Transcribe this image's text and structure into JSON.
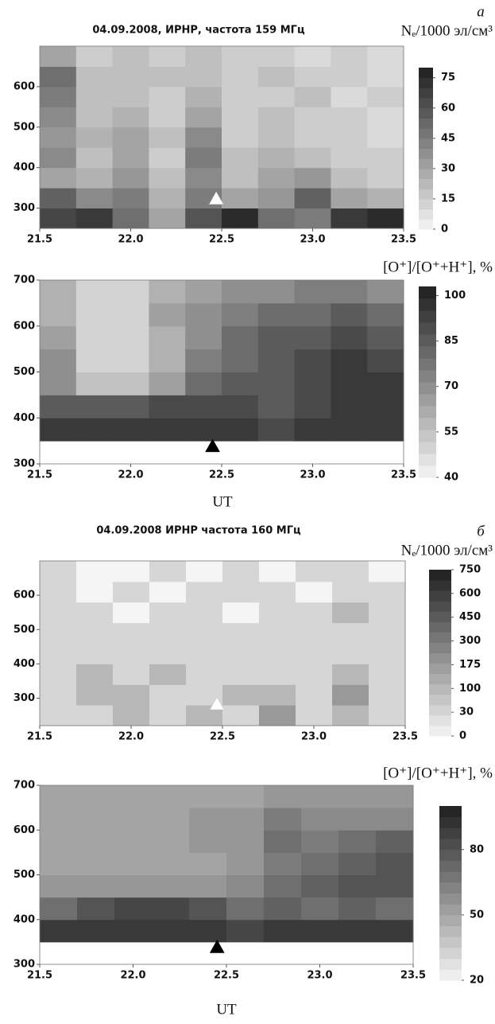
{
  "chart_data": [
    {
      "type": "heatmap",
      "title": "04.09.2008, ИРНР, частота 159 МГц",
      "panel_label": "а",
      "colorbar_label": "Nₑ/1000 эл/см³",
      "xbins": [
        21.5,
        21.7,
        21.9,
        22.1,
        22.3,
        22.5,
        22.7,
        22.9,
        23.1,
        23.3,
        23.5
      ],
      "ybins": [
        250,
        300,
        350,
        400,
        450,
        500,
        550,
        600,
        650,
        700
      ],
      "z": [
        [
          65,
          70,
          50,
          30,
          60,
          75,
          50,
          45,
          70,
          75
        ],
        [
          55,
          40,
          45,
          25,
          45,
          30,
          35,
          55,
          30,
          25
        ],
        [
          30,
          25,
          35,
          20,
          40,
          20,
          30,
          35,
          20,
          15
        ],
        [
          40,
          20,
          30,
          15,
          45,
          20,
          25,
          20,
          15,
          15
        ],
        [
          35,
          25,
          30,
          20,
          40,
          15,
          20,
          15,
          15,
          10
        ],
        [
          40,
          20,
          25,
          15,
          30,
          15,
          20,
          15,
          15,
          10
        ],
        [
          45,
          20,
          20,
          15,
          25,
          15,
          15,
          20,
          10,
          15
        ],
        [
          50,
          20,
          20,
          20,
          20,
          15,
          20,
          15,
          15,
          10
        ],
        [
          30,
          15,
          20,
          15,
          20,
          15,
          15,
          10,
          15,
          10
        ]
      ],
      "xlim": [
        21.5,
        23.5
      ],
      "ylim": [
        250,
        700
      ],
      "xticks": [
        21.5,
        {
          "value": 22,
          "label": "22.0"
        },
        22.5,
        {
          "value": 23,
          "label": "23.0"
        },
        23.5
      ],
      "yticks": [
        300,
        400,
        500,
        600
      ],
      "zlim": [
        0,
        80
      ],
      "zticks": [
        0,
        15,
        30,
        45,
        60,
        75
      ],
      "marker": {
        "x": 22.47,
        "y": 325,
        "color": "#ffffff"
      }
    },
    {
      "type": "heatmap",
      "colorbar_label": "[O⁺]/[O⁺+H⁺], %",
      "xlabel": "UT",
      "xbins": [
        21.5,
        21.7,
        21.9,
        22.1,
        22.3,
        22.5,
        22.7,
        22.9,
        23.1,
        23.3,
        23.5
      ],
      "ybins": [
        300,
        350,
        400,
        450,
        500,
        550,
        600,
        650,
        700
      ],
      "z": [
        [
          null,
          null,
          null,
          null,
          null,
          null,
          null,
          null,
          null,
          null
        ],
        [
          95,
          95,
          95,
          95,
          95,
          95,
          90,
          95,
          95,
          95
        ],
        [
          85,
          85,
          85,
          90,
          90,
          90,
          85,
          90,
          95,
          95
        ],
        [
          70,
          55,
          55,
          65,
          80,
          85,
          85,
          90,
          95,
          95
        ],
        [
          70,
          50,
          50,
          60,
          75,
          80,
          85,
          90,
          95,
          90
        ],
        [
          65,
          50,
          50,
          60,
          70,
          80,
          85,
          85,
          90,
          85
        ],
        [
          60,
          50,
          50,
          65,
          70,
          75,
          80,
          80,
          85,
          80
        ],
        [
          60,
          50,
          50,
          60,
          65,
          70,
          70,
          75,
          75,
          70
        ]
      ],
      "xlim": [
        21.5,
        23.5
      ],
      "ylim": [
        300,
        700
      ],
      "xticks": [
        21.5,
        {
          "value": 22,
          "label": "22.0"
        },
        22.5,
        {
          "value": 23,
          "label": "23.0"
        },
        23.5
      ],
      "yticks": [
        300,
        400,
        500,
        600,
        700
      ],
      "zlim": [
        40,
        103
      ],
      "zticks": [
        40,
        55,
        70,
        85,
        100
      ],
      "marker": {
        "x": 22.45,
        "y": 340,
        "color": "#000000"
      }
    },
    {
      "type": "heatmap",
      "title": "04.09.2008 ИРНР частота 160 МГц",
      "panel_label": "б",
      "colorbar_label": "Nₑ/1000 эл/см³",
      "xbins": [
        21.5,
        21.7,
        21.9,
        22.1,
        22.3,
        22.5,
        22.7,
        22.9,
        23.1,
        23.3,
        23.5
      ],
      "ybins": [
        220,
        280,
        340,
        400,
        460,
        520,
        580,
        640,
        700
      ],
      "z": [
        [
          30,
          30,
          100,
          30,
          100,
          30,
          175,
          30,
          100,
          30
        ],
        [
          30,
          100,
          100,
          30,
          30,
          100,
          100,
          30,
          175,
          30
        ],
        [
          30,
          100,
          30,
          100,
          30,
          30,
          30,
          30,
          100,
          30
        ],
        [
          30,
          30,
          30,
          30,
          30,
          30,
          30,
          30,
          30,
          30
        ],
        [
          30,
          30,
          30,
          30,
          30,
          30,
          30,
          30,
          30,
          30
        ],
        [
          30,
          30,
          0,
          30,
          30,
          0,
          30,
          30,
          100,
          30
        ],
        [
          30,
          0,
          30,
          0,
          30,
          30,
          30,
          0,
          30,
          30
        ],
        [
          30,
          0,
          0,
          30,
          0,
          30,
          0,
          30,
          30,
          0
        ]
      ],
      "xlim": [
        21.5,
        23.5
      ],
      "ylim": [
        220,
        700
      ],
      "xticks": [
        21.5,
        {
          "value": 22,
          "label": "22.0"
        },
        22.5,
        {
          "value": 23,
          "label": "23.0"
        },
        23.5
      ],
      "yticks": [
        300,
        400,
        500,
        600
      ],
      "zlim": [
        0,
        750
      ],
      "zscale": "ticks",
      "zticks": [
        0,
        30,
        100,
        175,
        300,
        450,
        600,
        750
      ],
      "marker": {
        "x": 22.47,
        "y": 285,
        "color": "#ffffff"
      }
    },
    {
      "type": "heatmap",
      "colorbar_label": "[O⁺]/[O⁺+H⁺], %",
      "xlabel": "UT",
      "xbins": [
        21.5,
        21.7,
        21.9,
        22.1,
        22.3,
        22.5,
        22.7,
        22.9,
        23.1,
        23.3,
        23.5
      ],
      "ybins": [
        300,
        350,
        400,
        450,
        500,
        550,
        600,
        650,
        700
      ],
      "z": [
        [
          null,
          null,
          null,
          null,
          null,
          null,
          null,
          null,
          null,
          null
        ],
        [
          90,
          90,
          90,
          90,
          90,
          85,
          90,
          90,
          90,
          90
        ],
        [
          70,
          80,
          85,
          85,
          80,
          70,
          75,
          70,
          75,
          70
        ],
        [
          55,
          55,
          55,
          55,
          55,
          60,
          70,
          75,
          80,
          80
        ],
        [
          50,
          50,
          50,
          50,
          50,
          55,
          65,
          70,
          75,
          80
        ],
        [
          50,
          50,
          50,
          50,
          55,
          55,
          70,
          65,
          70,
          75
        ],
        [
          50,
          50,
          50,
          50,
          55,
          55,
          65,
          60,
          60,
          60
        ],
        [
          50,
          50,
          50,
          50,
          50,
          50,
          55,
          55,
          55,
          55
        ]
      ],
      "xlim": [
        21.5,
        23.5
      ],
      "ylim": [
        300,
        700
      ],
      "xticks": [
        21.5,
        {
          "value": 22,
          "label": "22.0"
        },
        22.5,
        {
          "value": 23,
          "label": "23.0"
        },
        23.5
      ],
      "yticks": [
        300,
        400,
        500,
        600,
        700
      ],
      "zlim": [
        20,
        100
      ],
      "zticks": [
        20,
        50,
        80
      ],
      "marker": {
        "x": 22.45,
        "y": 340,
        "color": "#000000"
      }
    }
  ]
}
